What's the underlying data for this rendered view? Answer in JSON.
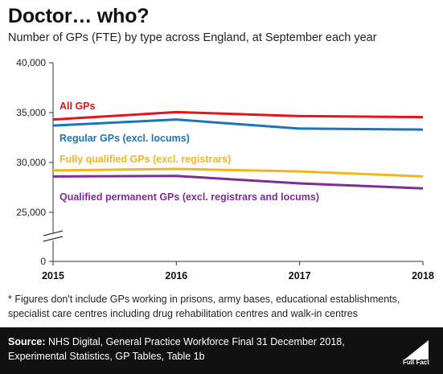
{
  "title": "Doctor… who?",
  "subtitle": "Number of GPs (FTE) by type across England, at September each year",
  "footnote_line1": "* Figures don't include GPs working in prisons, army bases, educational establishments,",
  "footnote_line2": "specialist care centres including drug rehabilitation centres and walk-in centres",
  "source_label": "Source:",
  "source_text_line1": " NHS Digital, General Practice Workforce Final 31 December 2018,",
  "source_text_line2": "Experimental Statistics, GP Tables, Table 1b",
  "logo_text": "Full Fact",
  "chart_data": {
    "type": "line",
    "x": [
      "2015",
      "2016",
      "2017",
      "2018"
    ],
    "y_ticks": [
      "0",
      "25,000",
      "30,000",
      "35,000",
      "40,000"
    ],
    "ylim": [
      25000,
      40000
    ],
    "axis_break": true,
    "grid": false,
    "series": [
      {
        "name": "All GPs",
        "color": "#e3141b",
        "values": [
          34300,
          35050,
          34650,
          34550
        ]
      },
      {
        "name": "Regular GPs (excl. locums)",
        "color": "#1a75bb",
        "values": [
          33700,
          34300,
          33400,
          33300
        ]
      },
      {
        "name": "Fully qualified GPs (excl. registrars)",
        "color": "#f2b51c",
        "values": [
          29200,
          29350,
          29100,
          28600
        ]
      },
      {
        "name": "Qualified permanent GPs (excl. registrars and locums)",
        "color": "#7c2d96",
        "values": [
          28600,
          28650,
          27900,
          27400
        ]
      }
    ]
  }
}
